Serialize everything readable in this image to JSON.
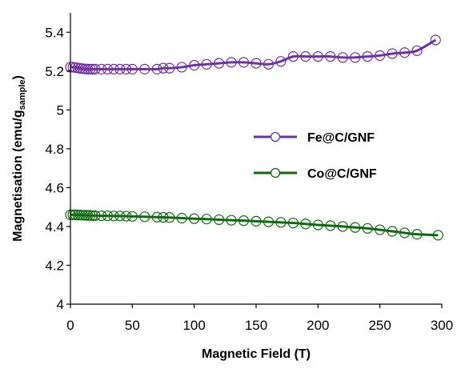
{
  "chart_data": {
    "type": "line",
    "xlabel": "Magnetic Field (T)",
    "ylabel": {
      "main": "Magnetisation (emu/g",
      "sub": "sample",
      "close": ")"
    },
    "xlim": [
      0,
      300
    ],
    "ylim": [
      4,
      5.5
    ],
    "xticks": [
      0,
      50,
      100,
      150,
      200,
      250,
      300
    ],
    "yticks": [
      4,
      4.2,
      4.4,
      4.6,
      4.8,
      5,
      5.2,
      5.4
    ],
    "ytick_labels": [
      "4",
      "4.2",
      "4.4",
      "4.6",
      "4.8",
      "5",
      "5.2",
      "5.4"
    ],
    "grid": false,
    "legend_position": "center-right",
    "series": [
      {
        "name": "Fe@C/GNF",
        "color": "#7030a0",
        "marker": "open-circle",
        "x": [
          0,
          2,
          4,
          6,
          8,
          10,
          12,
          14,
          16,
          18,
          20,
          25,
          30,
          35,
          40,
          45,
          50,
          60,
          70,
          75,
          80,
          90,
          100,
          110,
          120,
          130,
          140,
          150,
          160,
          170,
          180,
          190,
          200,
          210,
          220,
          230,
          240,
          250,
          260,
          270,
          280,
          295
        ],
        "values": [
          5.22,
          5.22,
          5.218,
          5.216,
          5.214,
          5.212,
          5.211,
          5.21,
          5.21,
          5.21,
          5.21,
          5.21,
          5.21,
          5.21,
          5.21,
          5.21,
          5.21,
          5.21,
          5.21,
          5.215,
          5.215,
          5.22,
          5.23,
          5.235,
          5.24,
          5.245,
          5.245,
          5.24,
          5.235,
          5.25,
          5.275,
          5.275,
          5.275,
          5.275,
          5.27,
          5.27,
          5.275,
          5.28,
          5.29,
          5.295,
          5.305,
          5.36
        ]
      },
      {
        "name": "Co@C/GNF",
        "color": "#0f6a0f",
        "marker": "open-circle",
        "x": [
          0,
          2,
          4,
          6,
          8,
          10,
          12,
          14,
          16,
          18,
          20,
          25,
          30,
          35,
          40,
          45,
          50,
          60,
          70,
          75,
          80,
          90,
          100,
          110,
          120,
          130,
          140,
          150,
          160,
          170,
          180,
          190,
          200,
          210,
          220,
          230,
          240,
          250,
          260,
          270,
          280,
          297
        ],
        "values": [
          4.46,
          4.46,
          4.46,
          4.459,
          4.459,
          4.458,
          4.458,
          4.457,
          4.457,
          4.456,
          4.456,
          4.455,
          4.455,
          4.454,
          4.454,
          4.453,
          4.452,
          4.45,
          4.448,
          4.447,
          4.446,
          4.443,
          4.44,
          4.438,
          4.435,
          4.432,
          4.43,
          4.427,
          4.424,
          4.421,
          4.418,
          4.413,
          4.408,
          4.404,
          4.4,
          4.395,
          4.39,
          4.383,
          4.375,
          4.367,
          4.36,
          4.355
        ]
      }
    ]
  }
}
